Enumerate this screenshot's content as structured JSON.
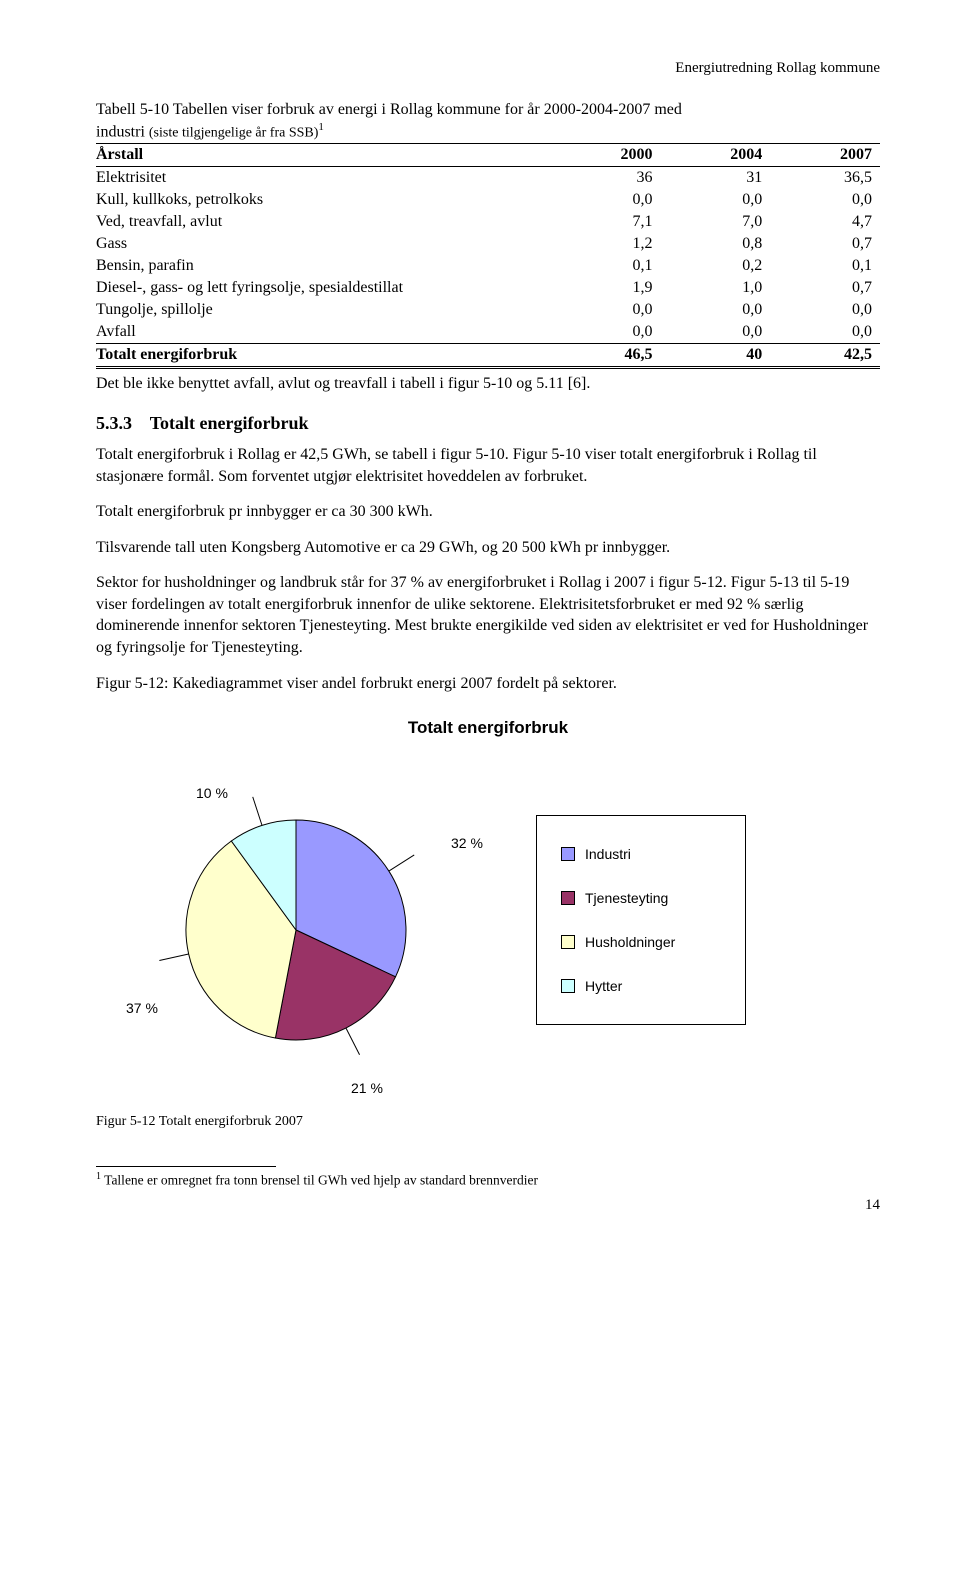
{
  "header": {
    "right_text": "Energiutredning Rollag kommune"
  },
  "table": {
    "caption_line1": "Tabell 5-10 Tabellen viser forbruk av energi i Rollag kommune for år 2000-2004-2007 med",
    "caption_line2_prefix": "industri ",
    "caption_line2_small": "(siste tilgjengelige år fra SSB)",
    "footref": "1",
    "headers": [
      "Årstall",
      "2000",
      "2004",
      "2007"
    ],
    "rows": [
      {
        "label": "Elektrisitet",
        "c1": "36",
        "c2": "31",
        "c3": "36,5"
      },
      {
        "label": "Kull, kullkoks, petrolkoks",
        "c1": "0,0",
        "c2": "0,0",
        "c3": "0,0"
      },
      {
        "label": "Ved, treavfall, avlut",
        "c1": "7,1",
        "c2": "7,0",
        "c3": "4,7"
      },
      {
        "label": "Gass",
        "c1": "1,2",
        "c2": "0,8",
        "c3": "0,7"
      },
      {
        "label": "Bensin, parafin",
        "c1": "0,1",
        "c2": "0,2",
        "c3": "0,1"
      },
      {
        "label": "Diesel-, gass- og lett fyringsolje, spesialdestillat",
        "c1": "1,9",
        "c2": "1,0",
        "c3": "0,7"
      },
      {
        "label": "Tungolje, spillolje",
        "c1": "0,0",
        "c2": "0,0",
        "c3": "0,0"
      },
      {
        "label": "Avfall",
        "c1": "0,0",
        "c2": "0,0",
        "c3": "0,0"
      }
    ],
    "total": {
      "label": "Totalt energiforbruk",
      "c1": "46,5",
      "c2": "40",
      "c3": "42,5"
    }
  },
  "after_table": "Det ble ikke benyttet avfall, avlut og treavfall i tabell i figur 5-10 og 5.11 [6].",
  "section": {
    "num": "5.3.3",
    "title": "Totalt energiforbruk",
    "p1": "Totalt energiforbruk i Rollag er 42,5 GWh, se tabell i figur 5-10. Figur 5-10 viser totalt energiforbruk i Rollag til stasjonære formål. Som forventet utgjør elektrisitet hoveddelen av forbruket.",
    "p2": "Totalt energiforbruk pr innbygger er ca 30 300 kWh.",
    "p3": "Tilsvarende tall uten Kongsberg Automotive er ca 29 GWh, og 20 500 kWh pr innbygger.",
    "p4": "Sektor for husholdninger og landbruk står for 37 % av energiforbruket i Rollag i 2007 i figur 5-12. Figur 5-13 til 5-19 viser fordelingen av totalt energiforbruk innenfor de ulike sektorene. Elektrisitetsforbruket er med 92 % særlig dominerende innenfor sektoren Tjenesteyting. Mest brukte energikilde ved siden av elektrisitet er ved for Husholdninger og fyringsolje for Tjenesteyting.",
    "p5": "Figur 5-12: Kakediagrammet viser andel forbrukt energi 2007 fordelt på sektorer."
  },
  "chart": {
    "type": "pie",
    "title": "Totalt energiforbruk",
    "background_color": "#ffffff",
    "border_color": "#000000",
    "slices": [
      {
        "label": "Industri",
        "value": 32,
        "color": "#9999ff",
        "label_text": "32 %"
      },
      {
        "label": "Tjenesteyting",
        "value": 21,
        "color": "#993366",
        "label_text": "21 %"
      },
      {
        "label": "Husholdninger",
        "value": 37,
        "color": "#ffffcc",
        "label_text": "37 %"
      },
      {
        "label": "Hytter",
        "value": 10,
        "color": "#ccffff",
        "label_text": "10 %"
      }
    ],
    "legend_items": [
      {
        "label": "Industri",
        "color": "#9999ff"
      },
      {
        "label": "Tjenesteyting",
        "color": "#993366"
      },
      {
        "label": "Husholdninger",
        "color": "#ffffcc"
      },
      {
        "label": "Hytter",
        "color": "#ccffff"
      }
    ],
    "label_fontsize": 14,
    "label_font": "Arial"
  },
  "fig_caption": "Figur 5-12 Totalt energiforbruk 2007",
  "footnote": {
    "marker": "1",
    "text": "Tallene er omregnet fra tonn brensel til GWh ved hjelp av standard brennverdier"
  },
  "page_number": "14"
}
